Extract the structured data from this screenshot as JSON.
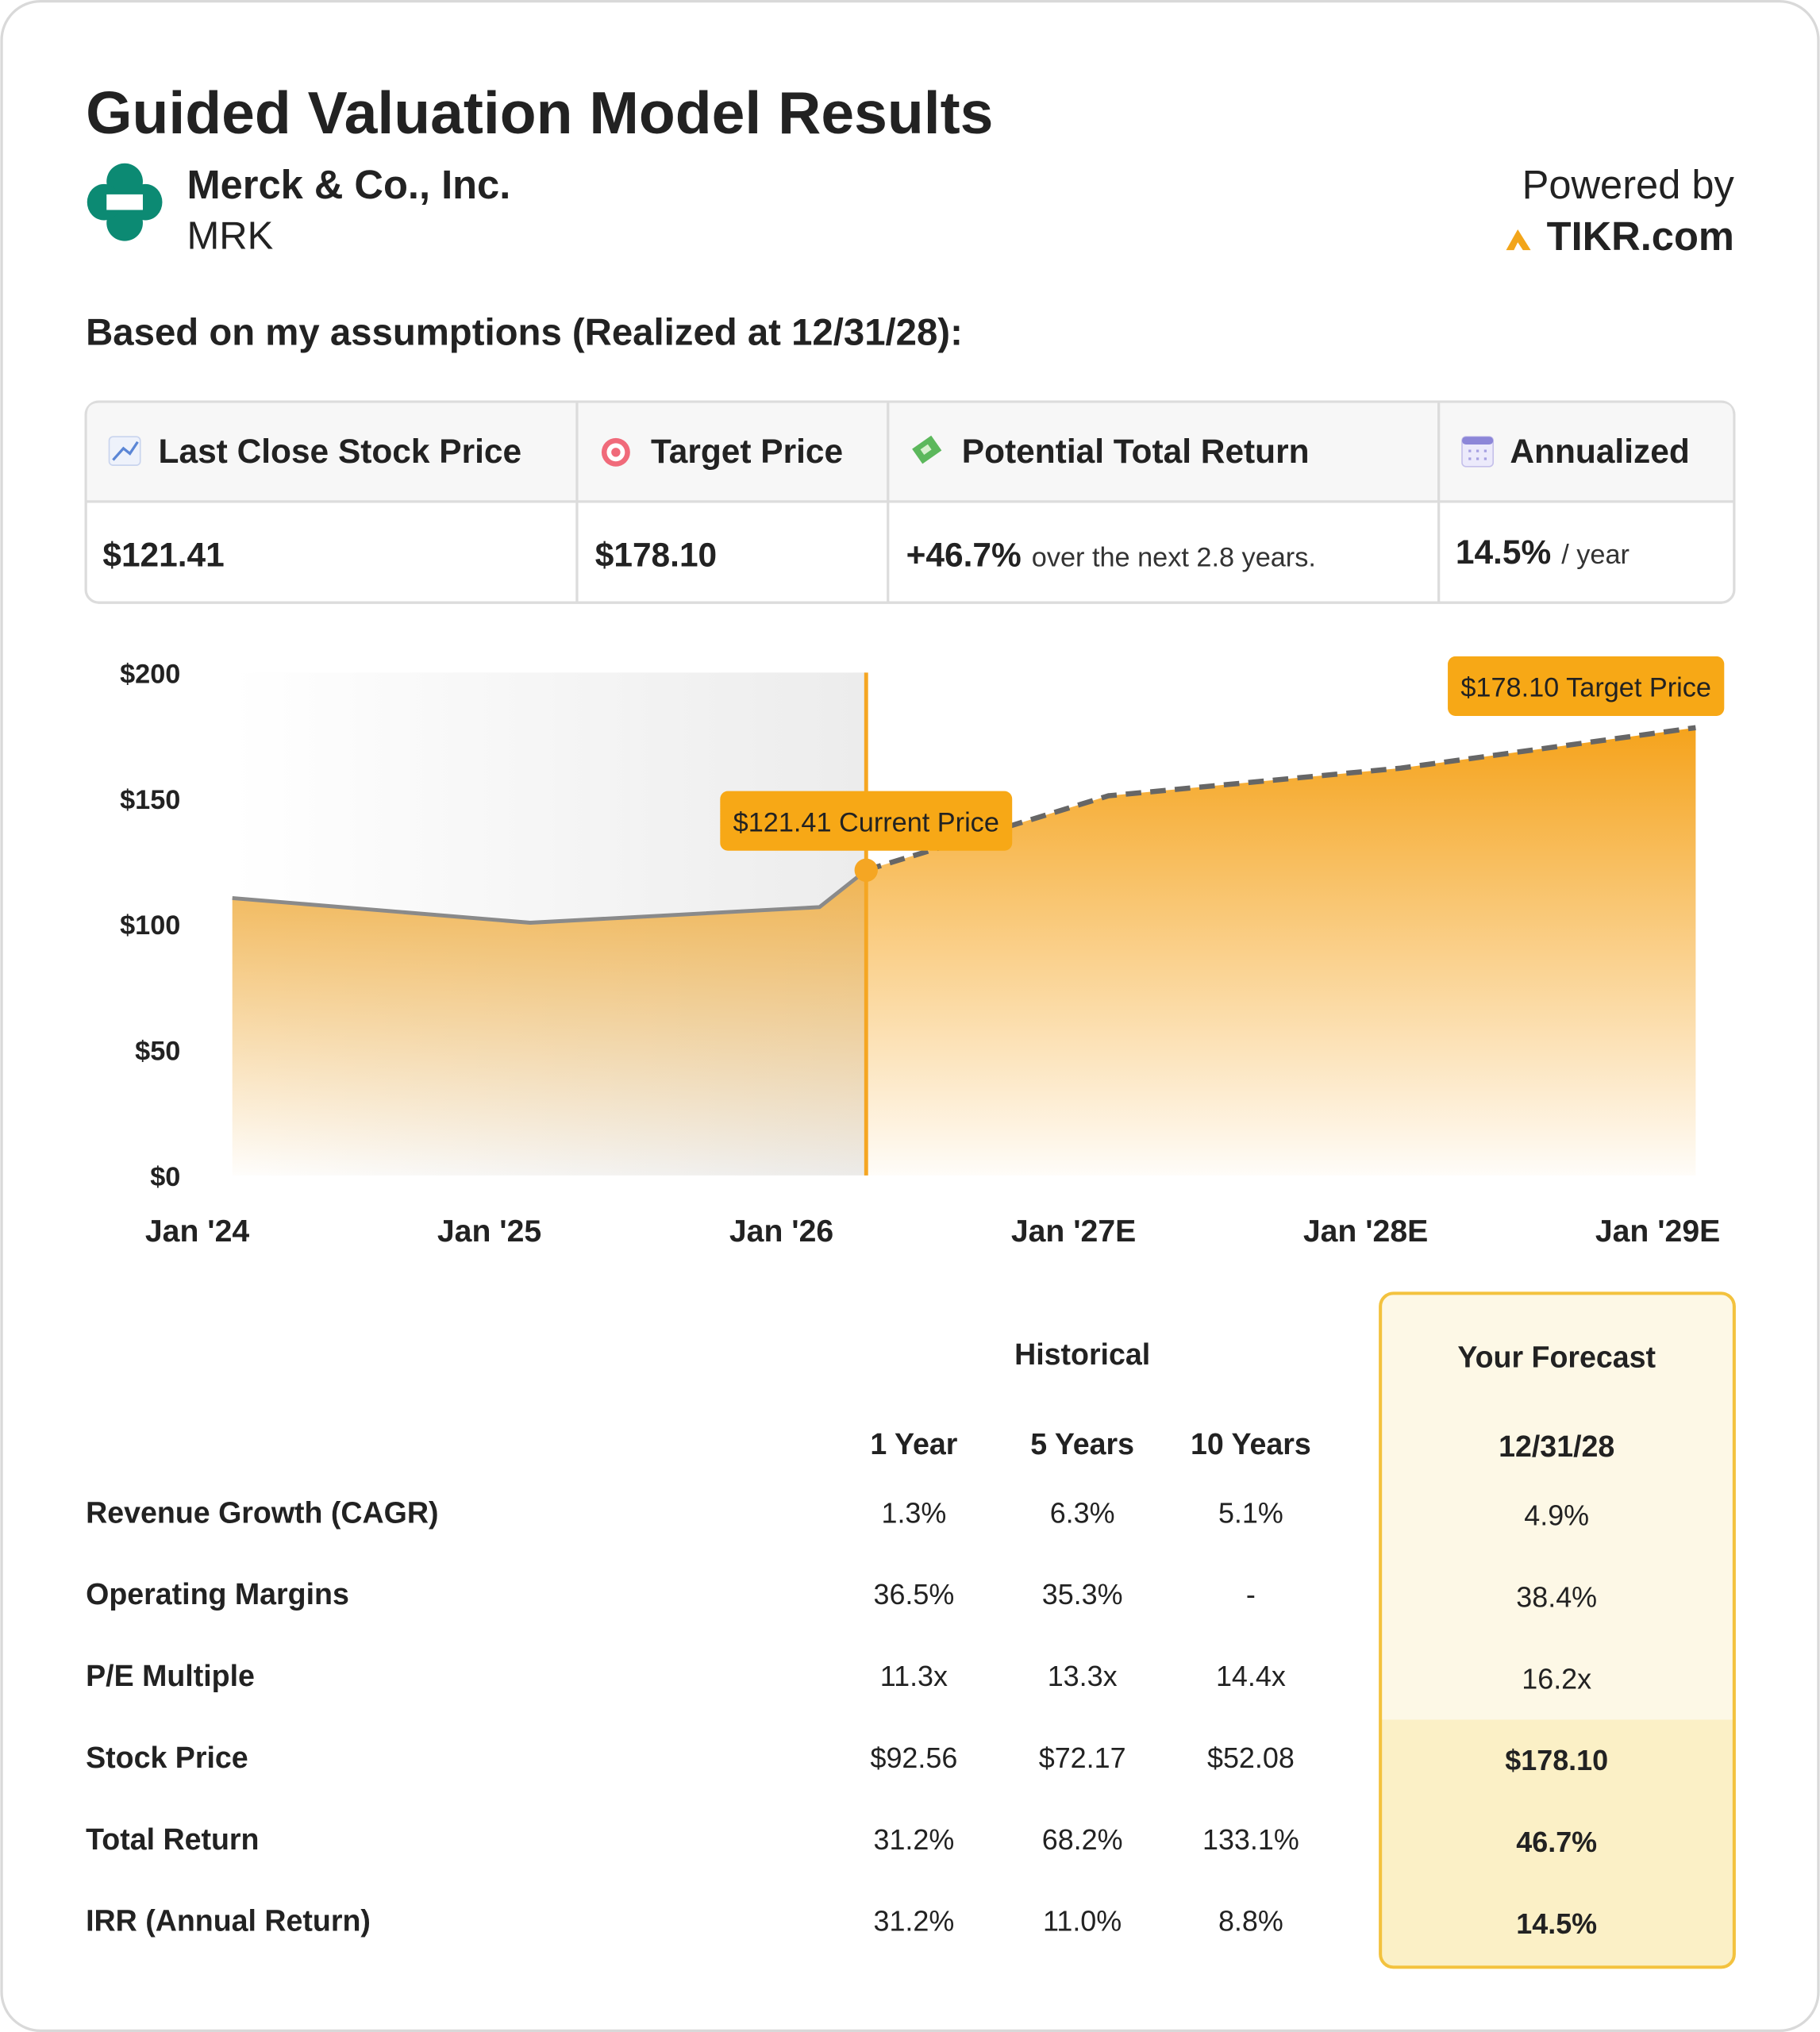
{
  "header": {
    "title": "Guided Valuation Model Results",
    "company": "Merck & Co., Inc.",
    "ticker": "MRK",
    "powered_by": "Powered by",
    "brand": "TIKR.com"
  },
  "assumption_label": "Based on my assumptions (Realized at 12/31/28):",
  "summary": {
    "headers": [
      "Last Close Stock Price",
      "Target Price",
      "Potential Total Return",
      "Annualized"
    ],
    "values": [
      {
        "main": "$121.41"
      },
      {
        "main": "$178.10"
      },
      {
        "main": "+46.7%",
        "sub": "over the next 2.8 years."
      },
      {
        "main": "14.5%",
        "sub": "/ year"
      }
    ]
  },
  "chart_data": {
    "type": "area",
    "x": [
      2024.12,
      2025.14,
      2026.13,
      2026.29,
      2027.12,
      2028.12,
      2029.13
    ],
    "series": [
      {
        "color": "#8a8a8a",
        "values": [
          110.3,
          100.5,
          106.7,
          121.41,
          null,
          null,
          null
        ]
      },
      {
        "color": "#666666",
        "dashed": true,
        "values": [
          null,
          null,
          null,
          121.41,
          151,
          162,
          178.1
        ]
      }
    ],
    "fill_color": "#f5a623",
    "annotations": [
      "$121.41 Current Price",
      "$178.10 Target Price"
    ],
    "xlim": [
      2024,
      2029.2
    ],
    "xticks": [
      {
        "value": 2024,
        "label": "Jan '24"
      },
      {
        "value": 2025,
        "label": "Jan '25"
      },
      {
        "value": 2026,
        "label": "Jan '26"
      },
      {
        "value": 2027,
        "label": "Jan '27E"
      },
      {
        "value": 2028,
        "label": "Jan '28E"
      },
      {
        "value": 2029,
        "label": "Jan '29E"
      }
    ],
    "ylim": [
      0,
      200
    ],
    "yticks": [
      {
        "value": 0,
        "label": "$0"
      },
      {
        "value": 50,
        "label": "$50"
      },
      {
        "value": 100,
        "label": "$100"
      },
      {
        "value": 150,
        "label": "$150"
      },
      {
        "value": 200,
        "label": "$200"
      }
    ]
  },
  "table": {
    "group_header": "Historical",
    "forecast_header": "Your Forecast",
    "columns": [
      "1 Year",
      "5 Years",
      "10 Years",
      "12/31/28"
    ],
    "rows": [
      {
        "label": "Revenue Growth (CAGR)",
        "values": [
          "1.3%",
          "6.3%",
          "5.1%",
          "4.9%"
        ]
      },
      {
        "label": "Operating Margins",
        "values": [
          "36.5%",
          "35.3%",
          "-",
          "38.4%"
        ]
      },
      {
        "label": "P/E Multiple",
        "values": [
          "11.3x",
          "13.3x",
          "14.4x",
          "16.2x"
        ]
      },
      {
        "label": "Stock Price",
        "values": [
          "$92.56",
          "$72.17",
          "$52.08",
          "$178.10"
        ]
      },
      {
        "label": "Total Return",
        "values": [
          "31.2%",
          "68.2%",
          "133.1%",
          "46.7%"
        ]
      },
      {
        "label": "IRR (Annual Return)",
        "values": [
          "31.2%",
          "11.0%",
          "8.8%",
          "14.5%"
        ]
      }
    ]
  }
}
